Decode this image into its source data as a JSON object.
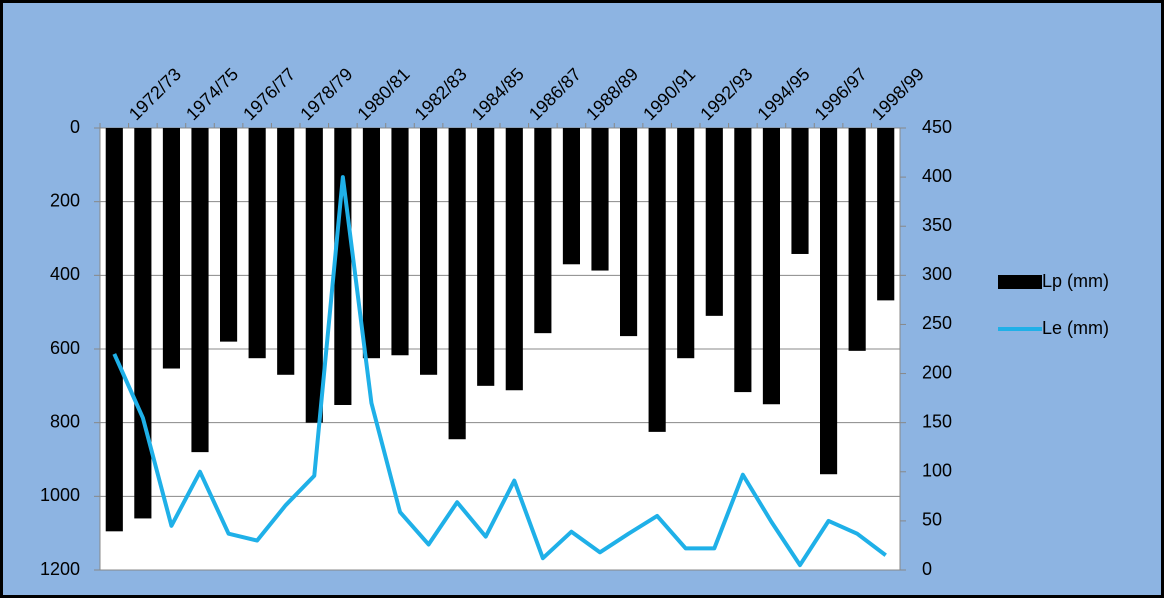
{
  "chart_data": {
    "type": "bar-line",
    "categories": [
      null,
      "1972/73",
      null,
      "1974/75",
      null,
      "1976/77",
      null,
      "1978/79",
      null,
      "1980/81",
      null,
      "1982/83",
      null,
      "1984/85",
      null,
      "1986/87",
      null,
      "1988/89",
      null,
      "1990/91",
      null,
      "1992/93",
      null,
      "1994/95",
      null,
      "1996/97",
      null,
      "1998/99"
    ],
    "series": [
      {
        "name": "Lp (mm)",
        "type": "bar",
        "color": "#000000",
        "values": [
          1095,
          1060,
          653,
          880,
          580,
          625,
          670,
          800,
          752,
          625,
          617,
          670,
          845,
          700,
          712,
          557,
          370,
          387,
          565,
          825,
          625,
          510,
          717,
          750,
          342,
          940,
          605,
          468
        ]
      },
      {
        "name": "Le (mm)",
        "type": "line",
        "axis": "y2",
        "color": "#1fb0e8",
        "values": [
          220,
          155,
          45,
          100,
          37,
          30,
          66,
          96,
          400,
          170,
          59,
          26,
          69,
          34,
          91,
          12,
          39,
          18,
          37,
          55,
          22,
          22,
          97,
          49,
          5,
          50,
          37,
          15
        ]
      }
    ],
    "ylim": [
      0,
      1200
    ],
    "y_inverted": true,
    "yticks": [
      0,
      200,
      400,
      600,
      800,
      1000,
      1200
    ],
    "y2lim": [
      0,
      450
    ],
    "y2ticks": [
      0,
      50,
      100,
      150,
      200,
      250,
      300,
      350,
      400,
      450
    ],
    "grid": true,
    "legend": "right"
  }
}
